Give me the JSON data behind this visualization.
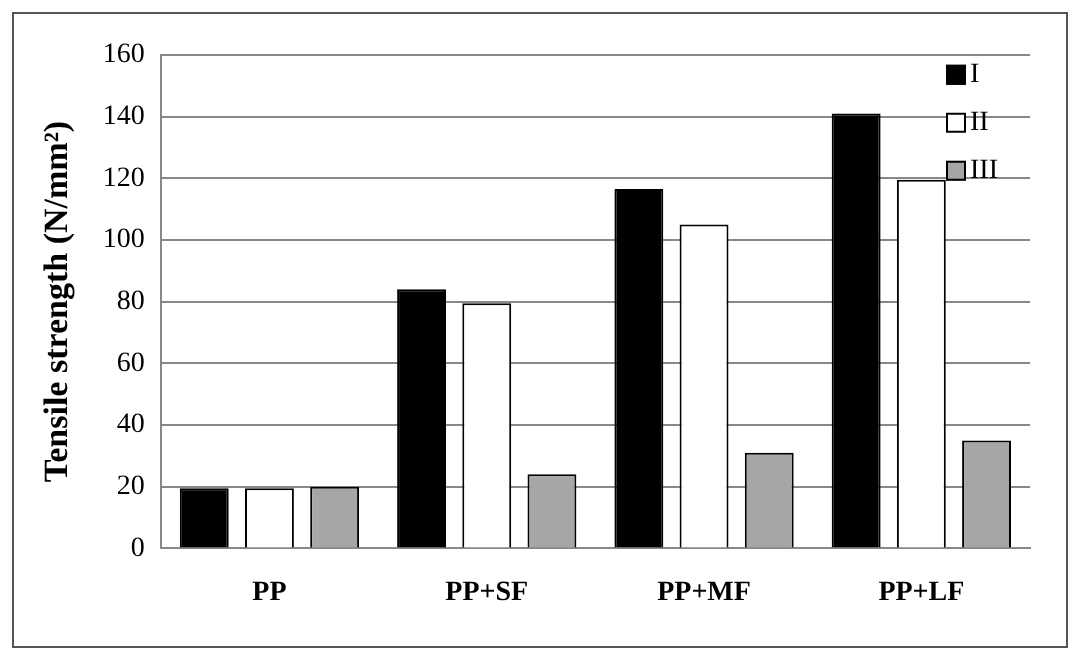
{
  "chart_data": {
    "type": "bar",
    "ylabel": "Tensile strength (N/mm²)",
    "categories": [
      "PP",
      "PP+SF",
      "PP+MF",
      "PP+LF"
    ],
    "series": [
      {
        "name": "I",
        "color": "#000000",
        "values": [
          19.5,
          84,
          116.5,
          141
        ]
      },
      {
        "name": "II",
        "color": "#ffffff",
        "values": [
          19.5,
          79.5,
          105,
          119.5
        ]
      },
      {
        "name": "III",
        "color": "#a6a6a6",
        "values": [
          20,
          24,
          31,
          35
        ]
      }
    ],
    "ylim": [
      0,
      160
    ],
    "yticks": [
      0,
      20,
      40,
      60,
      80,
      100,
      120,
      140,
      160
    ],
    "grid": "y",
    "legend": "top right"
  }
}
